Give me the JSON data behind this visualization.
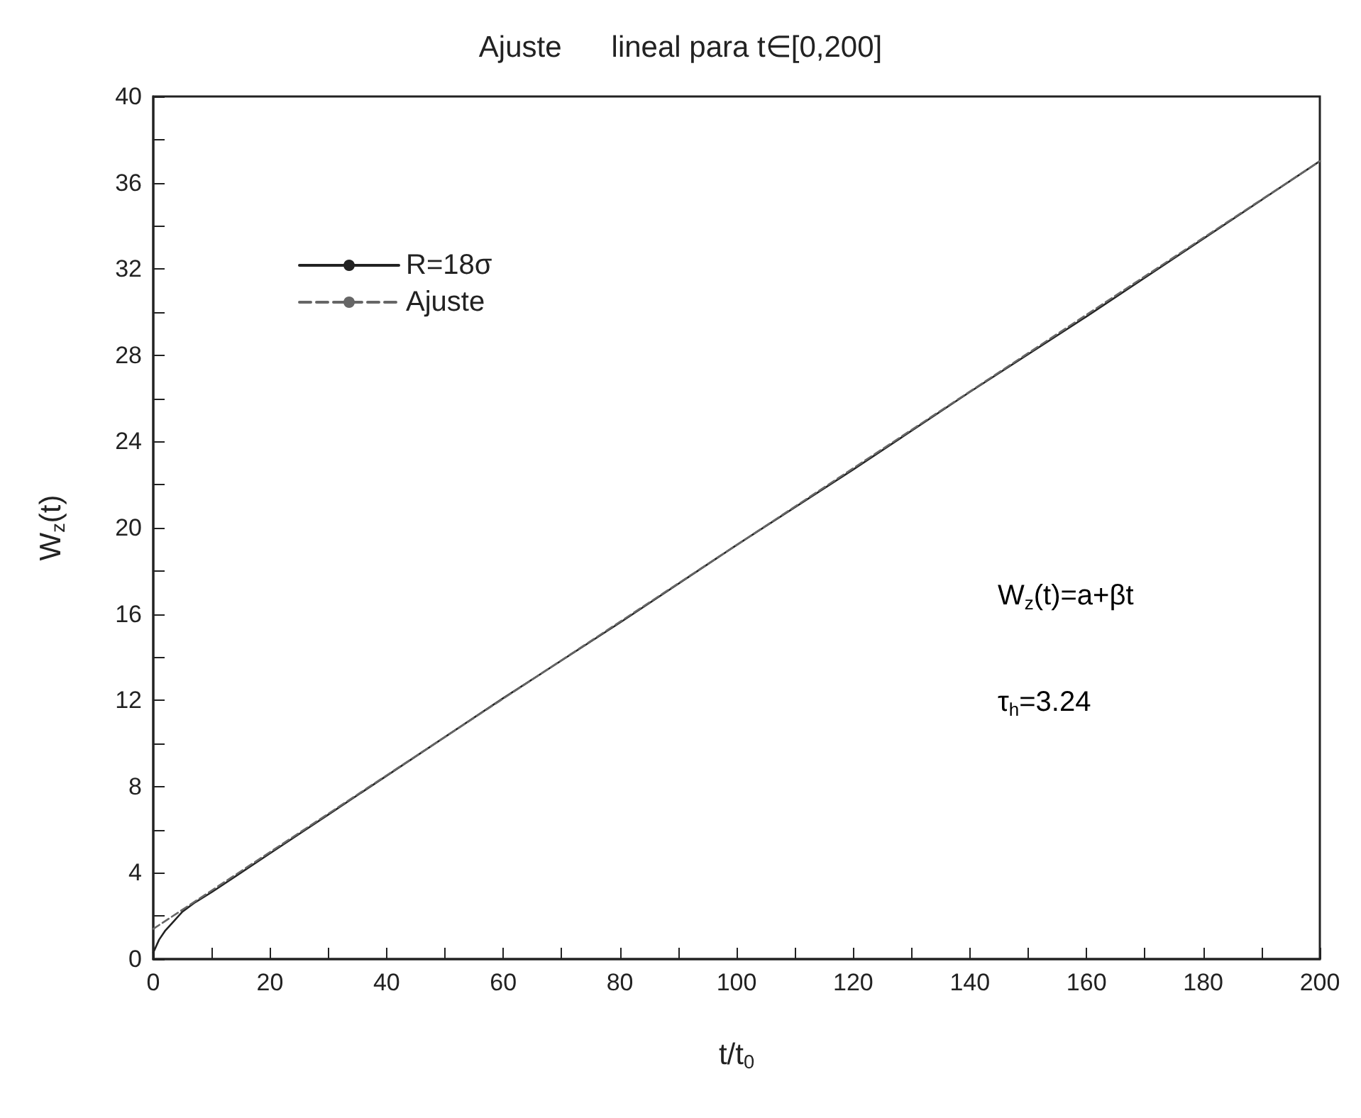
{
  "chart_data": {
    "type": "line",
    "title": "Ajuste      lineal para t∈[0,200]",
    "xlabel": "t/t$_{0}$",
    "ylabel": "W$_{z}$(t)",
    "annotations": [
      "W$_{z}$(t)=a+βt",
      "τ$_{h}$=3.24"
    ],
    "series": [
      {
        "name": "R=18σ",
        "color": "#222222",
        "line_style": "solid",
        "x": [
          0,
          0.5,
          1,
          2,
          3,
          5,
          7,
          10,
          15,
          20,
          30,
          40,
          60,
          80,
          100,
          120,
          140,
          160,
          180,
          200
        ],
        "values": [
          0.3,
          0.6,
          0.9,
          1.3,
          1.6,
          2.2,
          2.6,
          3.1,
          4.0,
          4.9,
          6.7,
          8.5,
          12.1,
          15.6,
          19.2,
          22.7,
          26.3,
          29.8,
          33.4,
          37.0
        ]
      },
      {
        "name": "Ajuste",
        "color": "#666666",
        "line_style": "dashed",
        "x": [
          0,
          200
        ],
        "values": [
          1.4,
          37.0
        ]
      }
    ],
    "xlim": [
      0,
      200
    ],
    "xticks": [
      0,
      {
        "value": 10,
        "label": null
      },
      20,
      {
        "value": 30,
        "label": null
      },
      40,
      {
        "value": 50,
        "label": null
      },
      60,
      {
        "value": 70,
        "label": null
      },
      80,
      {
        "value": 90,
        "label": null
      },
      100,
      {
        "value": 110,
        "label": null
      },
      120,
      {
        "value": 130,
        "label": null
      },
      140,
      {
        "value": 150,
        "label": null
      },
      160,
      {
        "value": 170,
        "label": null
      },
      180,
      {
        "value": 190,
        "label": null
      },
      200
    ],
    "ylim": [
      0,
      40
    ],
    "yticks": [
      0,
      {
        "value": 2,
        "label": null
      },
      4,
      {
        "value": 6,
        "label": null
      },
      8,
      {
        "value": 10,
        "label": null
      },
      12,
      {
        "value": 14,
        "label": null
      },
      16,
      {
        "value": 18,
        "label": null
      },
      20,
      {
        "value": 22,
        "label": null
      },
      24,
      {
        "value": 26,
        "label": null
      },
      28,
      {
        "value": 30,
        "label": null
      },
      32,
      {
        "value": 34,
        "label": null
      },
      36,
      {
        "value": 38,
        "label": null
      },
      40
    ],
    "grid": false,
    "legend": "top left",
    "marker": "none"
  }
}
